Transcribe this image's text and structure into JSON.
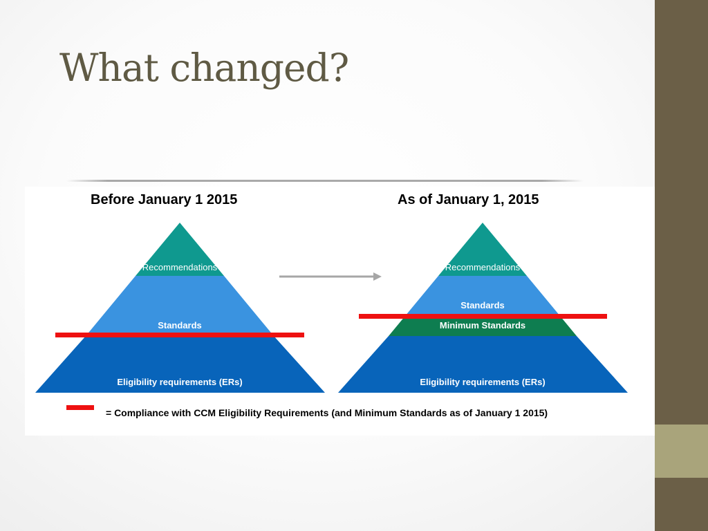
{
  "slide": {
    "title": "What changed?"
  },
  "before": {
    "heading": "Before January 1 2015",
    "tiers": {
      "recommendations": "Recommendations",
      "standards": "Standards",
      "eligibility": "Eligibility requirements (ERs)"
    }
  },
  "after": {
    "heading": "As of January 1, 2015",
    "tiers": {
      "recommendations": "Recommendations",
      "standards": "Standards",
      "minimum_standards": "Minimum Standards",
      "eligibility": "Eligibility requirements (ERs)"
    }
  },
  "legend": {
    "text": "= Compliance with CCM Eligibility Requirements (and Minimum Standards as of January 1 2015)"
  },
  "colors": {
    "recommendations": "#0f998f",
    "standards": "#3a93e0",
    "minimum_standards": "#0e7d50",
    "eligibility": "#0864ba",
    "compliance_line": "#ee1111",
    "arrow": "#a6a6a6",
    "sidebar": "#6b5f47",
    "sidebar_accent": "#a9a47b",
    "title": "#5f5a44"
  }
}
